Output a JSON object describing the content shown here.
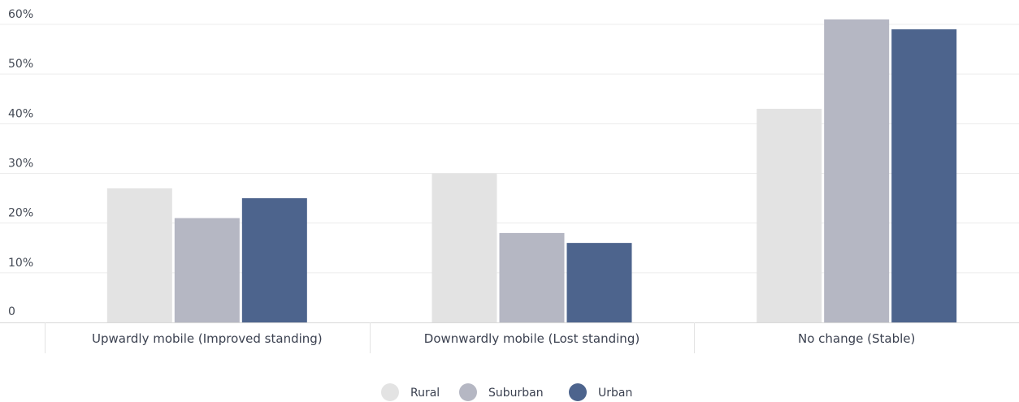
{
  "chart_data": {
    "type": "bar",
    "categories": [
      "Upwardly mobile (Improved standing)",
      "Downwardly mobile (Lost standing)",
      "No change (Stable)"
    ],
    "series": [
      {
        "name": "Rural",
        "color": "#e3e3e3",
        "values": [
          27,
          30,
          43
        ]
      },
      {
        "name": "Suburban",
        "color": "#b5b7c3",
        "values": [
          21,
          18,
          61
        ]
      },
      {
        "name": "Urban",
        "color": "#4d648d",
        "values": [
          25,
          16,
          59
        ]
      }
    ],
    "y_ticks": [
      {
        "value": 0,
        "label": "0"
      },
      {
        "value": 10,
        "label": "10%"
      },
      {
        "value": 20,
        "label": "20%"
      },
      {
        "value": 30,
        "label": "30%"
      },
      {
        "value": 40,
        "label": "40%"
      },
      {
        "value": 50,
        "label": "50%"
      },
      {
        "value": 60,
        "label": "60%"
      }
    ],
    "ylim": [
      0,
      60
    ],
    "grid": true,
    "legend_position": "bottom-center",
    "title": "",
    "xlabel": "",
    "ylabel": ""
  }
}
